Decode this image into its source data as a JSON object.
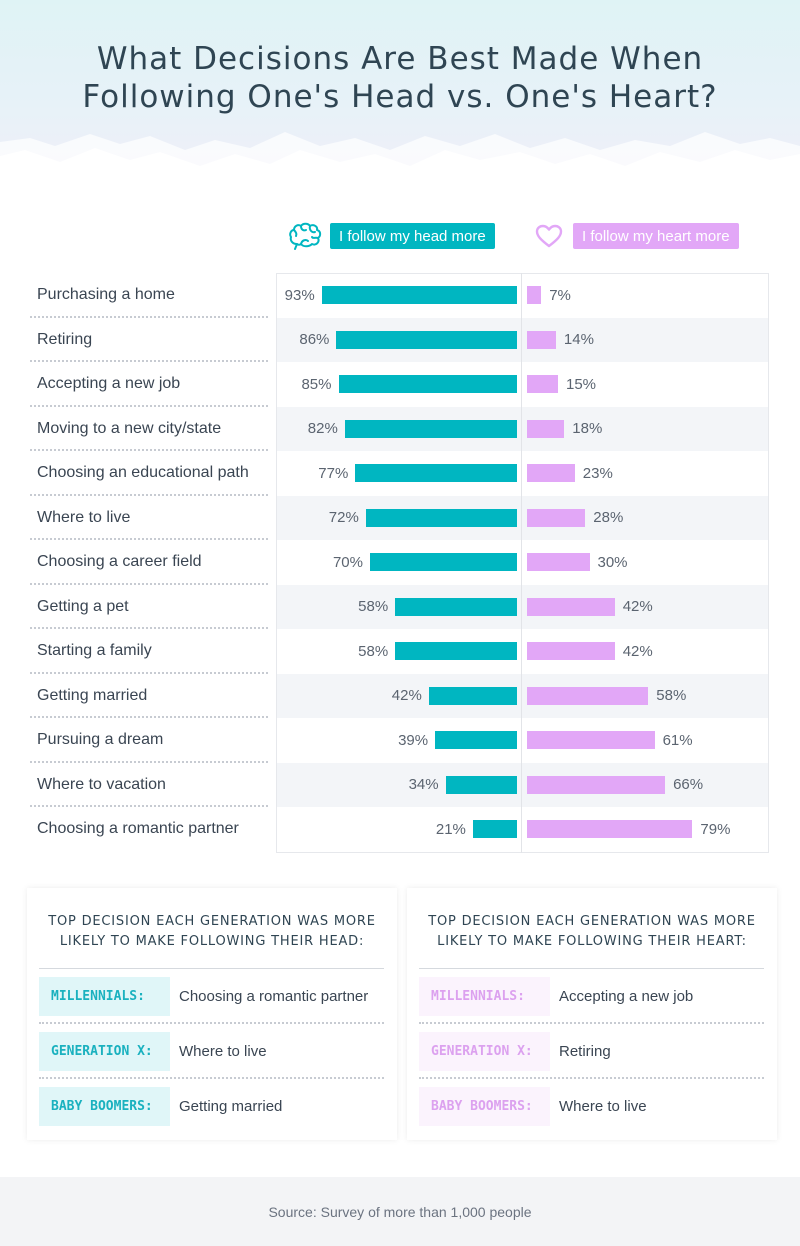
{
  "title_line1": "What Decisions Are Best Made When",
  "title_line2": "Following One's Head vs. One's Heart?",
  "colors": {
    "head": "#00b6c1",
    "heart": "#e2a7f7"
  },
  "icons": {
    "head": "brain-icon",
    "heart": "heart-icon"
  },
  "chart_data": {
    "type": "bar",
    "orientation": "horizontal-diverging",
    "title": "What Decisions Are Best Made When Following One's Head vs. One's Heart?",
    "categories": [
      "Purchasing a home",
      "Retiring",
      "Accepting a new job",
      "Moving to a new city/state",
      "Choosing an educational path",
      "Where to live",
      "Choosing a career field",
      "Getting a pet",
      "Starting a family",
      "Getting married",
      "Pursuing a dream",
      "Where to vacation",
      "Choosing a romantic partner"
    ],
    "series": [
      {
        "name": "I follow my head more",
        "values": [
          93,
          86,
          85,
          82,
          77,
          72,
          70,
          58,
          58,
          42,
          39,
          34,
          21
        ]
      },
      {
        "name": "I follow my heart more",
        "values": [
          7,
          14,
          15,
          18,
          23,
          28,
          30,
          42,
          42,
          58,
          61,
          66,
          79
        ]
      }
    ],
    "unit": "%",
    "xlim": [
      0,
      100
    ],
    "legend": "top",
    "grid": false
  },
  "head_card": {
    "title_line1": "TOP DECISION EACH GENERATION WAS MORE",
    "title_line2": "LIKELY TO MAKE FOLLOWING THEIR HEAD:",
    "rows": [
      {
        "generation": "MILLENNIALS:",
        "decision": "Choosing a romantic partner"
      },
      {
        "generation": "GENERATION X:",
        "decision": "Where to live"
      },
      {
        "generation": "BABY BOOMERS:",
        "decision": "Getting married"
      }
    ]
  },
  "heart_card": {
    "title_line1": "TOP DECISION EACH GENERATION WAS MORE",
    "title_line2": "LIKELY TO MAKE FOLLOWING THEIR HEART:",
    "rows": [
      {
        "generation": "MILLENNIALS:",
        "decision": "Accepting a new job"
      },
      {
        "generation": "GENERATION X:",
        "decision": "Retiring"
      },
      {
        "generation": "BABY BOOMERS:",
        "decision": "Where to live"
      }
    ]
  },
  "source": "Source: Survey of more than 1,000 people"
}
